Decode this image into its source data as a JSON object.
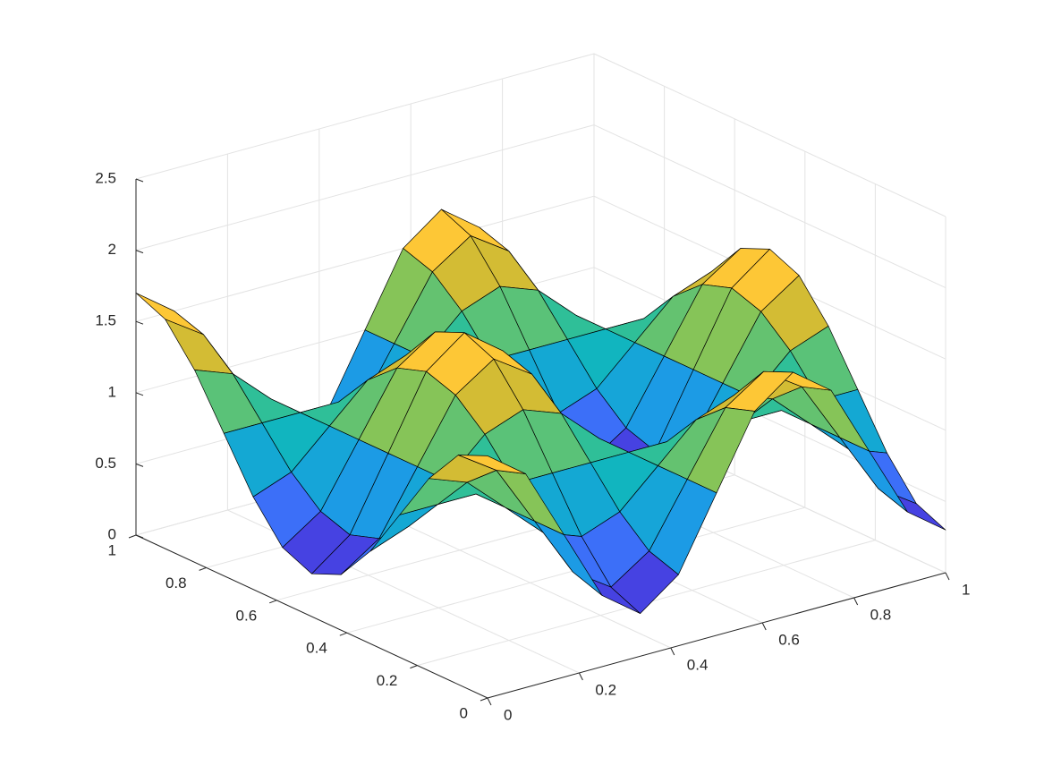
{
  "chart_data": {
    "type": "surface",
    "x": [
      0,
      0.0833,
      0.1667,
      0.25,
      0.3333,
      0.4167,
      0.5,
      0.5833,
      0.6667,
      0.75,
      0.8333,
      0.9167,
      1
    ],
    "y": [
      0,
      0.0833,
      0.1667,
      0.25,
      0.3333,
      0.4167,
      0.5,
      0.5833,
      0.6667,
      0.75,
      0.8333,
      0.9167,
      1
    ],
    "z": [
      [
        1.7,
        1.5,
        1,
        0.5,
        0.3,
        0.5,
        1,
        1.5,
        1.7,
        1.5,
        1,
        0.5,
        0.3
      ],
      [
        1.61,
        1.43,
        1,
        0.57,
        0.39,
        0.57,
        1,
        1.43,
        1.61,
        1.43,
        1,
        0.57,
        0.39
      ],
      [
        1.35,
        1.25,
        1,
        0.75,
        0.65,
        0.75,
        1,
        1.25,
        1.35,
        1.25,
        1,
        0.75,
        0.65
      ],
      [
        1,
        1,
        1,
        1,
        1,
        1,
        1,
        1,
        1,
        1,
        1,
        1,
        1
      ],
      [
        0.65,
        0.75,
        1,
        1.25,
        1.35,
        1.25,
        1,
        0.75,
        0.65,
        0.75,
        1,
        1.25,
        1.35
      ],
      [
        0.39,
        0.57,
        1,
        1.43,
        1.61,
        1.43,
        1,
        0.57,
        0.39,
        0.57,
        1,
        1.43,
        1.61
      ],
      [
        0.3,
        0.5,
        1,
        1.5,
        1.7,
        1.5,
        1,
        0.5,
        0.3,
        0.5,
        1,
        1.5,
        1.7
      ],
      [
        0.39,
        0.57,
        1,
        1.43,
        1.61,
        1.43,
        1,
        0.57,
        0.39,
        0.57,
        1,
        1.43,
        1.61
      ],
      [
        0.65,
        0.75,
        1,
        1.25,
        1.35,
        1.25,
        1,
        0.75,
        0.65,
        0.75,
        1,
        1.25,
        1.35
      ],
      [
        1,
        1,
        1,
        1,
        1,
        1,
        1,
        1,
        1,
        1,
        1,
        1,
        1
      ],
      [
        1.35,
        1.25,
        1,
        0.75,
        0.65,
        0.75,
        1,
        1.25,
        1.35,
        1.25,
        1,
        0.75,
        0.65
      ],
      [
        1.61,
        1.43,
        1,
        0.57,
        0.39,
        0.57,
        1,
        1.43,
        1.61,
        1.43,
        1,
        0.57,
        0.39
      ],
      [
        1.7,
        1.5,
        1,
        0.5,
        0.3,
        0.5,
        1,
        1.5,
        1.7,
        1.5,
        1,
        0.5,
        0.3
      ]
    ],
    "xlim": [
      0,
      1
    ],
    "ylim": [
      0,
      1
    ],
    "zlim": [
      0,
      2.5
    ],
    "xticks": [
      0,
      0.2,
      0.4,
      0.6,
      0.8,
      1
    ],
    "yticks": [
      0,
      0.2,
      0.4,
      0.6,
      0.8,
      1
    ],
    "zticks": [
      0,
      0.5,
      1,
      1.5,
      2,
      2.5
    ],
    "grid": true,
    "edge_color": "#000000",
    "colormap": [
      "#3e26a8",
      "#4745e8",
      "#3a76fb",
      "#1c9be5",
      "#0db4c4",
      "#33c093",
      "#86c458",
      "#ccbb33",
      "#fdc13a",
      "#f9fb15"
    ]
  }
}
